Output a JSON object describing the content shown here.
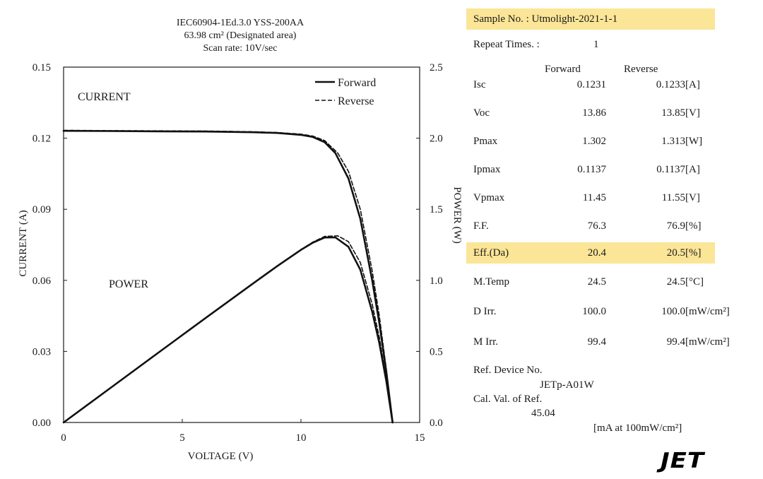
{
  "chart_data": {
    "type": "line",
    "title_lines": [
      "IEC60904-1Ed.3.0 YSS-200AA",
      "63.98 cm² (Designated area)",
      "Scan rate: 10V/sec"
    ],
    "xlabel": "VOLTAGE (V)",
    "ylabel_left": "CURRENT (A)",
    "ylabel_right": "POWER (W)",
    "xlim": [
      0,
      15
    ],
    "ylim_left": [
      0,
      0.15
    ],
    "ylim_right": [
      0,
      2.5
    ],
    "xticks": [
      "0",
      "5",
      "10",
      "15"
    ],
    "yticks_left": [
      "0.00",
      "0.03",
      "0.06",
      "0.09",
      "0.12",
      "0.15"
    ],
    "yticks_right": [
      "0.0",
      "0.5",
      "1.0",
      "1.5",
      "2.0",
      "2.5"
    ],
    "annotations": [
      "CURRENT",
      "POWER"
    ],
    "legend": [
      "Forward",
      "Reverse"
    ],
    "legend_position": "top-right",
    "series": [
      {
        "name": "Forward",
        "kind": "current",
        "style": "solid",
        "axis": "left",
        "x": [
          0,
          2,
          4,
          6,
          8,
          9,
          10,
          10.5,
          11,
          11.45,
          12,
          12.5,
          13,
          13.3,
          13.6,
          13.86
        ],
        "y": [
          0.1231,
          0.123,
          0.1229,
          0.1228,
          0.1225,
          0.1222,
          0.1214,
          0.1205,
          0.1183,
          0.1137,
          0.103,
          0.086,
          0.06,
          0.042,
          0.021,
          0.0
        ]
      },
      {
        "name": "Reverse",
        "kind": "current",
        "style": "dashed",
        "axis": "left",
        "x": [
          0,
          2,
          4,
          6,
          8,
          9,
          10,
          10.5,
          11,
          11.55,
          12,
          12.5,
          13,
          13.3,
          13.6,
          13.85
        ],
        "y": [
          0.1233,
          0.1232,
          0.1231,
          0.123,
          0.1227,
          0.1224,
          0.1217,
          0.1209,
          0.119,
          0.1137,
          0.106,
          0.09,
          0.064,
          0.045,
          0.022,
          0.0
        ]
      },
      {
        "name": "Forward",
        "kind": "power",
        "style": "solid",
        "axis": "right",
        "x": [
          0,
          2,
          4,
          6,
          8,
          9,
          10,
          10.5,
          11,
          11.45,
          12,
          12.5,
          13,
          13.3,
          13.6,
          13.86
        ],
        "y": [
          0,
          0.246,
          0.492,
          0.737,
          0.98,
          1.1,
          1.214,
          1.265,
          1.301,
          1.302,
          1.236,
          1.075,
          0.78,
          0.559,
          0.286,
          0
        ]
      },
      {
        "name": "Reverse",
        "kind": "power",
        "style": "dashed",
        "axis": "right",
        "x": [
          0,
          2,
          4,
          6,
          8,
          9,
          10,
          10.5,
          11,
          11.55,
          12,
          12.5,
          13,
          13.3,
          13.6,
          13.85
        ],
        "y": [
          0,
          0.246,
          0.492,
          0.738,
          0.982,
          1.102,
          1.217,
          1.269,
          1.309,
          1.313,
          1.272,
          1.125,
          0.832,
          0.599,
          0.299,
          0
        ]
      }
    ]
  },
  "results": {
    "sample_label": "Sample No. : Utmolight-2021-1-1",
    "repeat_label": "Repeat Times. :",
    "repeat_value": "1",
    "col_forward": "Forward",
    "col_reverse": "Reverse",
    "rows": [
      {
        "label": "Isc",
        "forward": "0.1231",
        "reverse": "0.1233",
        "unit": "[A]",
        "highlight": false
      },
      {
        "label": "Voc",
        "forward": "13.86",
        "reverse": "13.85",
        "unit": "[V]",
        "highlight": false
      },
      {
        "label": "Pmax",
        "forward": "1.302",
        "reverse": "1.313",
        "unit": "[W]",
        "highlight": false
      },
      {
        "label": "Ipmax",
        "forward": "0.1137",
        "reverse": "0.1137",
        "unit": "[A]",
        "highlight": false
      },
      {
        "label": "Vpmax",
        "forward": "11.45",
        "reverse": "11.55",
        "unit": "[V]",
        "highlight": false
      },
      {
        "label": "F.F.",
        "forward": "76.3",
        "reverse": "76.9",
        "unit": "[%]",
        "highlight": false
      },
      {
        "label": "Eff.(Da)",
        "forward": "20.4",
        "reverse": "20.5",
        "unit": "[%]",
        "highlight": true
      },
      {
        "label": "M.Temp",
        "forward": "24.5",
        "reverse": "24.5",
        "unit": "[°C]",
        "highlight": false
      },
      {
        "label": "D Irr.",
        "forward": "100.0",
        "reverse": "100.0",
        "unit": "[mW/cm²]",
        "highlight": false
      },
      {
        "label": "M Irr.",
        "forward": "99.4",
        "reverse": "99.4",
        "unit": "[mW/cm²]",
        "highlight": false
      }
    ],
    "ref_device_label": "Ref. Device No.",
    "ref_device_value": "JETp-A01W",
    "cal_val_label": "Cal. Val. of Ref.",
    "cal_val_value": "45.04",
    "cal_unit": "[mA at 100mW/cm²]"
  },
  "logo_text": "JET",
  "colors": {
    "highlight": "#fbe597",
    "ink": "#1a1a1a"
  }
}
